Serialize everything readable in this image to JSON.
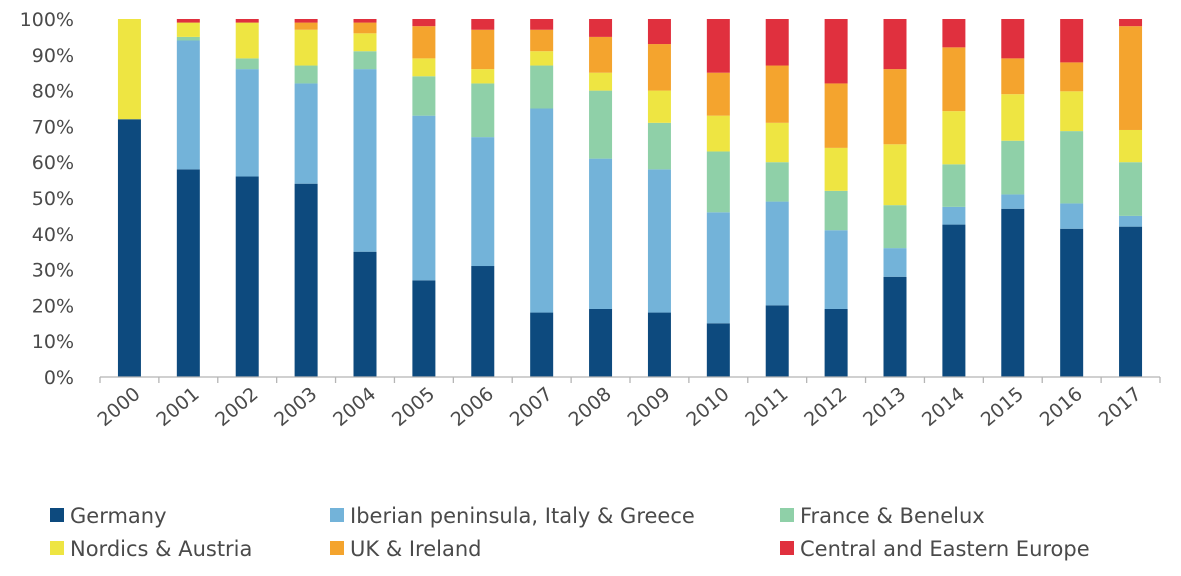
{
  "chart_data": {
    "type": "bar",
    "stacked": true,
    "title": "",
    "xlabel": "",
    "ylabel": "",
    "ylim": [
      0,
      100
    ],
    "y_ticks": [
      "0%",
      "10%",
      "20%",
      "30%",
      "40%",
      "50%",
      "60%",
      "70%",
      "80%",
      "90%",
      "100%"
    ],
    "grid": false,
    "legend_position": "bottom",
    "categories": [
      "2000",
      "2001",
      "2002",
      "2003",
      "2004",
      "2005",
      "2006",
      "2007",
      "2008",
      "2009",
      "2010",
      "2011",
      "2012",
      "2013",
      "2014",
      "2015",
      "2016",
      "2017"
    ],
    "series": [
      {
        "name": "Germany",
        "color": "#0d4a7e",
        "values": [
          72,
          58,
          56,
          54,
          35,
          27,
          31,
          18,
          19,
          18,
          15,
          20,
          19,
          28,
          43,
          47,
          41,
          42
        ]
      },
      {
        "name": "Iberian peninsula, Italy & Greece",
        "color": "#73b3d9",
        "values": [
          0,
          36,
          30,
          28,
          51,
          46,
          36,
          57,
          42,
          40,
          31,
          29,
          22,
          8,
          5,
          4,
          7,
          3
        ]
      },
      {
        "name": "France & Benelux",
        "color": "#8fd0a8",
        "values": [
          0,
          1,
          3,
          5,
          5,
          11,
          15,
          12,
          19,
          13,
          17,
          11,
          11,
          12,
          12,
          15,
          20,
          15
        ]
      },
      {
        "name": "Nordics & Austria",
        "color": "#eee542",
        "values": [
          28,
          4,
          10,
          10,
          5,
          5,
          4,
          4,
          5,
          9,
          10,
          11,
          12,
          17,
          15,
          13,
          11,
          9
        ]
      },
      {
        "name": "UK & Ireland",
        "color": "#f4a42e",
        "values": [
          0,
          0,
          0,
          2,
          3,
          9,
          11,
          6,
          10,
          13,
          12,
          16,
          18,
          21,
          18,
          10,
          8,
          29
        ]
      },
      {
        "name": "Central and Eastern Europe",
        "color": "#e0303e",
        "values": [
          0,
          1,
          1,
          1,
          1,
          2,
          3,
          3,
          5,
          7,
          15,
          13,
          18,
          14,
          8,
          11,
          12,
          2
        ]
      }
    ]
  }
}
